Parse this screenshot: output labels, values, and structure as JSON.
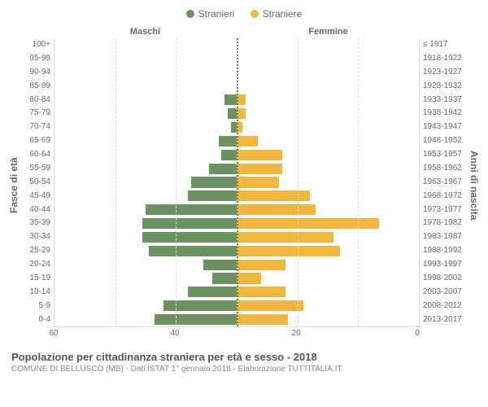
{
  "legend": {
    "male": {
      "label": "Stranieri",
      "color": "#6b9362"
    },
    "female": {
      "label": "Straniere",
      "color": "#f2b63c"
    }
  },
  "headers": {
    "left": "Maschi",
    "right": "Femmine"
  },
  "y_axis_left_label": "Fasce di età",
  "y_axis_right_label": "Anni di nascita",
  "x_axis": {
    "min_male": 60,
    "max_female": 60,
    "ticks": [
      60,
      40,
      20,
      0,
      20,
      40,
      60
    ]
  },
  "age_groups": [
    {
      "age": "100+",
      "birth": "≤ 1917",
      "male": 0,
      "female": 0
    },
    {
      "age": "95-99",
      "birth": "1918-1922",
      "male": 0,
      "female": 0
    },
    {
      "age": "90-94",
      "birth": "1923-1927",
      "male": 0,
      "female": 0
    },
    {
      "age": "85-89",
      "birth": "1928-1932",
      "male": 0,
      "female": 0
    },
    {
      "age": "80-84",
      "birth": "1933-1937",
      "male": 4,
      "female": 3
    },
    {
      "age": "75-79",
      "birth": "1938-1942",
      "male": 3,
      "female": 3
    },
    {
      "age": "70-74",
      "birth": "1943-1947",
      "male": 2,
      "female": 2
    },
    {
      "age": "65-69",
      "birth": "1948-1952",
      "male": 6,
      "female": 7
    },
    {
      "age": "60-64",
      "birth": "1953-1957",
      "male": 5,
      "female": 15
    },
    {
      "age": "55-59",
      "birth": "1958-1962",
      "male": 9,
      "female": 15
    },
    {
      "age": "50-54",
      "birth": "1963-1967",
      "male": 15,
      "female": 14
    },
    {
      "age": "45-49",
      "birth": "1968-1972",
      "male": 16,
      "female": 24
    },
    {
      "age": "40-44",
      "birth": "1973-1977",
      "male": 30,
      "female": 26
    },
    {
      "age": "35-39",
      "birth": "1978-1982",
      "male": 31,
      "female": 47
    },
    {
      "age": "30-34",
      "birth": "1983-1987",
      "male": 31,
      "female": 32
    },
    {
      "age": "25-29",
      "birth": "1988-1992",
      "male": 29,
      "female": 34
    },
    {
      "age": "20-24",
      "birth": "1993-1997",
      "male": 11,
      "female": 16
    },
    {
      "age": "15-19",
      "birth": "1998-2002",
      "male": 8,
      "female": 8
    },
    {
      "age": "10-14",
      "birth": "2003-2007",
      "male": 16,
      "female": 16
    },
    {
      "age": "5-9",
      "birth": "2008-2012",
      "male": 24,
      "female": 22
    },
    {
      "age": "0-4",
      "birth": "2013-2017",
      "male": 27,
      "female": 17
    }
  ],
  "title": "Popolazione per cittadinanza straniera per età e sesso - 2018",
  "subtitle": "COMUNE DI BELLUSCO (MB) - Dati ISTAT 1° gennaio 2018 - Elaborazione TUTTITALIA.IT",
  "colors": {
    "grid": "#dddddd",
    "text": "#666666",
    "center_line": "#7a7a3a"
  }
}
